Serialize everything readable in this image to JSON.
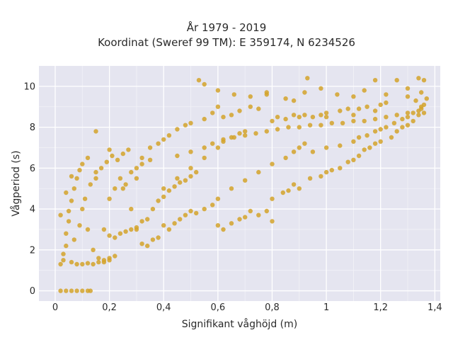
{
  "chart_data": {
    "type": "scatter",
    "title": "År 1979 - 2019",
    "subtitle": "Koordinat (Sweref 99 TM): E 359174, N 6234526",
    "xlabel": "Signifikant våghöjd (m)",
    "ylabel": "Vågperiod (s)",
    "xlim": [
      -0.06,
      1.42
    ],
    "ylim": [
      -0.5,
      11.0
    ],
    "xticks": [
      0,
      0.2,
      0.4,
      0.6,
      0.8,
      1,
      1.2,
      1.4
    ],
    "xtick_labels": [
      "0",
      "0,2",
      "0,4",
      "0,6",
      "0,8",
      "1",
      "1,2",
      "1,4"
    ],
    "yticks": [
      0,
      2,
      4,
      6,
      8,
      10
    ],
    "ytick_labels": [
      "0",
      "2",
      "4",
      "6",
      "8",
      "10"
    ],
    "grid": true,
    "background_color": "#e5e5f0",
    "marker_color": "#d4a32a",
    "points": [
      [
        0.02,
        0.0
      ],
      [
        0.04,
        0.0
      ],
      [
        0.06,
        0.0
      ],
      [
        0.08,
        0.0
      ],
      [
        0.1,
        0.0
      ],
      [
        0.12,
        0.0
      ],
      [
        0.13,
        0.0
      ],
      [
        0.02,
        1.3
      ],
      [
        0.03,
        1.5
      ],
      [
        0.03,
        1.8
      ],
      [
        0.04,
        2.2
      ],
      [
        0.04,
        2.8
      ],
      [
        0.05,
        3.4
      ],
      [
        0.05,
        3.9
      ],
      [
        0.06,
        4.4
      ],
      [
        0.07,
        5.0
      ],
      [
        0.08,
        5.5
      ],
      [
        0.09,
        5.9
      ],
      [
        0.1,
        6.2
      ],
      [
        0.12,
        6.5
      ],
      [
        0.02,
        3.7
      ],
      [
        0.04,
        4.8
      ],
      [
        0.06,
        5.6
      ],
      [
        0.1,
        4.0
      ],
      [
        0.12,
        3.0
      ],
      [
        0.14,
        2.0
      ],
      [
        0.16,
        1.6
      ],
      [
        0.18,
        1.4
      ],
      [
        0.2,
        1.5
      ],
      [
        0.22,
        1.7
      ],
      [
        0.06,
        1.4
      ],
      [
        0.08,
        1.3
      ],
      [
        0.1,
        1.3
      ],
      [
        0.12,
        1.35
      ],
      [
        0.14,
        1.3
      ],
      [
        0.16,
        1.4
      ],
      [
        0.18,
        1.5
      ],
      [
        0.2,
        1.6
      ],
      [
        0.07,
        2.5
      ],
      [
        0.09,
        3.2
      ],
      [
        0.11,
        4.5
      ],
      [
        0.13,
        5.2
      ],
      [
        0.15,
        5.8
      ],
      [
        0.17,
        6.0
      ],
      [
        0.19,
        6.3
      ],
      [
        0.21,
        6.6
      ],
      [
        0.23,
        6.4
      ],
      [
        0.25,
        6.7
      ],
      [
        0.27,
        6.9
      ],
      [
        0.15,
        7.8
      ],
      [
        0.2,
        6.9
      ],
      [
        0.25,
        5.0
      ],
      [
        0.28,
        4.0
      ],
      [
        0.3,
        3.0
      ],
      [
        0.32,
        2.3
      ],
      [
        0.34,
        2.2
      ],
      [
        0.36,
        2.5
      ],
      [
        0.38,
        2.6
      ],
      [
        0.3,
        5.5
      ],
      [
        0.32,
        6.5
      ],
      [
        0.35,
        7.0
      ],
      [
        0.38,
        7.2
      ],
      [
        0.4,
        7.4
      ],
      [
        0.42,
        7.6
      ],
      [
        0.45,
        7.9
      ],
      [
        0.48,
        8.1
      ],
      [
        0.5,
        8.2
      ],
      [
        0.4,
        3.2
      ],
      [
        0.42,
        3.0
      ],
      [
        0.44,
        3.3
      ],
      [
        0.46,
        3.5
      ],
      [
        0.48,
        3.7
      ],
      [
        0.5,
        3.9
      ],
      [
        0.52,
        3.8
      ],
      [
        0.55,
        4.0
      ],
      [
        0.58,
        4.2
      ],
      [
        0.4,
        5.0
      ],
      [
        0.45,
        5.5
      ],
      [
        0.5,
        6.0
      ],
      [
        0.55,
        6.5
      ],
      [
        0.6,
        7.0
      ],
      [
        0.62,
        7.3
      ],
      [
        0.65,
        7.5
      ],
      [
        0.68,
        7.7
      ],
      [
        0.7,
        7.8
      ],
      [
        0.55,
        8.4
      ],
      [
        0.58,
        8.7
      ],
      [
        0.6,
        9.0
      ],
      [
        0.62,
        8.5
      ],
      [
        0.65,
        8.6
      ],
      [
        0.68,
        8.8
      ],
      [
        0.72,
        9.0
      ],
      [
        0.75,
        8.9
      ],
      [
        0.78,
        9.6
      ],
      [
        0.6,
        3.2
      ],
      [
        0.62,
        3.0
      ],
      [
        0.65,
        3.3
      ],
      [
        0.68,
        3.5
      ],
      [
        0.7,
        3.6
      ],
      [
        0.72,
        3.9
      ],
      [
        0.75,
        3.7
      ],
      [
        0.78,
        3.9
      ],
      [
        0.8,
        3.4
      ],
      [
        0.6,
        4.5
      ],
      [
        0.65,
        5.0
      ],
      [
        0.7,
        5.4
      ],
      [
        0.75,
        5.8
      ],
      [
        0.8,
        6.2
      ],
      [
        0.85,
        6.5
      ],
      [
        0.88,
        6.8
      ],
      [
        0.9,
        7.0
      ],
      [
        0.92,
        7.2
      ],
      [
        0.8,
        8.3
      ],
      [
        0.82,
        8.5
      ],
      [
        0.85,
        8.4
      ],
      [
        0.88,
        8.6
      ],
      [
        0.9,
        8.5
      ],
      [
        0.92,
        8.6
      ],
      [
        0.95,
        8.5
      ],
      [
        0.98,
        8.6
      ],
      [
        1.0,
        8.7
      ],
      [
        0.8,
        4.5
      ],
      [
        0.84,
        4.8
      ],
      [
        0.86,
        4.9
      ],
      [
        0.88,
        5.2
      ],
      [
        0.9,
        5.0
      ],
      [
        0.94,
        5.5
      ],
      [
        0.98,
        5.6
      ],
      [
        1.0,
        5.8
      ],
      [
        1.02,
        5.9
      ],
      [
        0.95,
        6.8
      ],
      [
        1.0,
        7.0
      ],
      [
        1.05,
        7.1
      ],
      [
        1.1,
        7.3
      ],
      [
        1.12,
        7.5
      ],
      [
        1.15,
        7.6
      ],
      [
        1.18,
        7.8
      ],
      [
        1.2,
        7.9
      ],
      [
        1.22,
        8.0
      ],
      [
        1.0,
        8.5
      ],
      [
        1.05,
        8.8
      ],
      [
        1.08,
        8.9
      ],
      [
        1.1,
        8.6
      ],
      [
        1.12,
        8.9
      ],
      [
        1.15,
        9.0
      ],
      [
        1.18,
        8.8
      ],
      [
        1.2,
        9.1
      ],
      [
        1.22,
        9.2
      ],
      [
        1.05,
        6.0
      ],
      [
        1.08,
        6.3
      ],
      [
        1.1,
        6.4
      ],
      [
        1.12,
        6.6
      ],
      [
        1.14,
        6.9
      ],
      [
        1.16,
        7.0
      ],
      [
        1.18,
        7.2
      ],
      [
        1.2,
        7.3
      ],
      [
        1.24,
        7.5
      ],
      [
        1.25,
        8.2
      ],
      [
        1.28,
        8.4
      ],
      [
        1.3,
        8.5
      ],
      [
        1.32,
        8.7
      ],
      [
        1.34,
        8.8
      ],
      [
        1.35,
        9.0
      ],
      [
        1.36,
        9.1
      ],
      [
        1.33,
        9.3
      ],
      [
        1.3,
        9.5
      ],
      [
        1.26,
        7.8
      ],
      [
        1.28,
        8.0
      ],
      [
        1.3,
        8.1
      ],
      [
        1.32,
        8.3
      ],
      [
        1.34,
        8.6
      ],
      [
        1.35,
        8.9
      ],
      [
        1.36,
        8.7
      ],
      [
        0.53,
        10.3
      ],
      [
        0.55,
        10.1
      ],
      [
        0.6,
        9.8
      ],
      [
        0.66,
        9.6
      ],
      [
        0.72,
        9.5
      ],
      [
        0.78,
        9.7
      ],
      [
        0.85,
        9.4
      ],
      [
        0.88,
        9.3
      ],
      [
        0.92,
        9.7
      ],
      [
        0.93,
        10.4
      ],
      [
        0.98,
        9.9
      ],
      [
        1.04,
        9.6
      ],
      [
        1.1,
        9.5
      ],
      [
        1.14,
        9.8
      ],
      [
        1.18,
        10.3
      ],
      [
        1.22,
        9.6
      ],
      [
        1.26,
        10.3
      ],
      [
        1.3,
        9.9
      ],
      [
        1.34,
        10.4
      ],
      [
        1.36,
        10.3
      ],
      [
        1.37,
        9.4
      ],
      [
        1.35,
        9.7
      ],
      [
        0.15,
        5.5
      ],
      [
        0.2,
        4.5
      ],
      [
        0.22,
        5.0
      ],
      [
        0.24,
        5.5
      ],
      [
        0.26,
        5.2
      ],
      [
        0.28,
        5.8
      ],
      [
        0.3,
        6.0
      ],
      [
        0.32,
        6.2
      ],
      [
        0.35,
        6.4
      ],
      [
        0.18,
        3.0
      ],
      [
        0.2,
        2.7
      ],
      [
        0.22,
        2.6
      ],
      [
        0.24,
        2.8
      ],
      [
        0.26,
        2.9
      ],
      [
        0.28,
        3.0
      ],
      [
        0.3,
        3.1
      ],
      [
        0.32,
        3.4
      ],
      [
        0.34,
        3.5
      ],
      [
        0.36,
        4.0
      ],
      [
        0.38,
        4.4
      ],
      [
        0.4,
        4.6
      ],
      [
        0.42,
        4.9
      ],
      [
        0.44,
        5.1
      ],
      [
        0.46,
        5.3
      ],
      [
        0.48,
        5.4
      ],
      [
        0.5,
        5.6
      ],
      [
        0.52,
        5.8
      ],
      [
        0.45,
        6.6
      ],
      [
        0.5,
        6.8
      ],
      [
        0.55,
        7.0
      ],
      [
        0.58,
        7.2
      ],
      [
        0.62,
        7.4
      ],
      [
        0.66,
        7.5
      ],
      [
        0.7,
        7.6
      ],
      [
        0.74,
        7.7
      ],
      [
        0.78,
        7.8
      ],
      [
        0.82,
        7.9
      ],
      [
        0.86,
        8.0
      ],
      [
        0.9,
        8.0
      ],
      [
        0.94,
        8.1
      ],
      [
        0.98,
        8.1
      ],
      [
        1.02,
        8.2
      ],
      [
        1.06,
        8.2
      ],
      [
        1.1,
        8.3
      ],
      [
        1.14,
        8.3
      ],
      [
        1.18,
        8.4
      ],
      [
        1.22,
        8.5
      ],
      [
        1.26,
        8.6
      ],
      [
        1.3,
        8.7
      ]
    ]
  }
}
